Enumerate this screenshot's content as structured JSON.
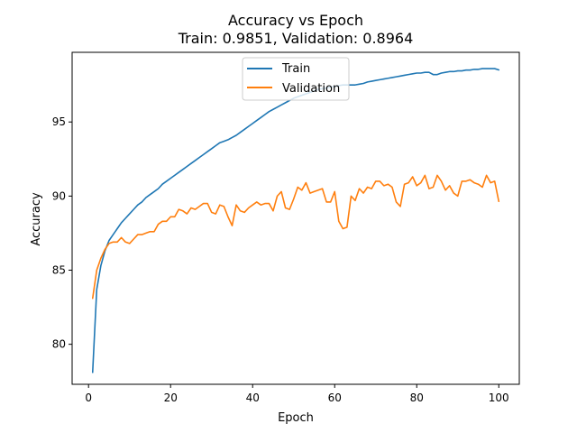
{
  "chart_data": {
    "type": "line",
    "title": "Accuracy vs Epoch",
    "subtitle": "Train: 0.9851, Validation: 0.8964",
    "xlabel": "Epoch",
    "ylabel": "Accuracy",
    "xlim": [
      -4,
      105
    ],
    "ylim": [
      77.3,
      99.7
    ],
    "xticks": [
      0,
      20,
      40,
      60,
      80,
      100
    ],
    "yticks": [
      80,
      85,
      90,
      95
    ],
    "xtick_labels": [
      "0",
      "20",
      "40",
      "60",
      "80",
      "100"
    ],
    "ytick_labels": [
      "80",
      "85",
      "90",
      "95"
    ],
    "grid": false,
    "legend_position": "top-center",
    "x": [
      1,
      2,
      3,
      4,
      5,
      6,
      7,
      8,
      9,
      10,
      11,
      12,
      13,
      14,
      15,
      16,
      17,
      18,
      19,
      20,
      21,
      22,
      23,
      24,
      25,
      26,
      27,
      28,
      29,
      30,
      31,
      32,
      33,
      34,
      35,
      36,
      37,
      38,
      39,
      40,
      41,
      42,
      43,
      44,
      45,
      46,
      47,
      48,
      49,
      50,
      51,
      52,
      53,
      54,
      55,
      56,
      57,
      58,
      59,
      60,
      61,
      62,
      63,
      64,
      65,
      66,
      67,
      68,
      69,
      70,
      71,
      72,
      73,
      74,
      75,
      76,
      77,
      78,
      79,
      80,
      81,
      82,
      83,
      84,
      85,
      86,
      87,
      88,
      89,
      90,
      91,
      92,
      93,
      94,
      95,
      96,
      97,
      98,
      99,
      100
    ],
    "series": [
      {
        "name": "Train",
        "color": "#1f77b4",
        "values": [
          78.1,
          83.7,
          85.3,
          86.3,
          87.0,
          87.4,
          87.8,
          88.2,
          88.5,
          88.8,
          89.1,
          89.4,
          89.6,
          89.9,
          90.1,
          90.3,
          90.5,
          90.8,
          91.0,
          91.2,
          91.4,
          91.6,
          91.8,
          92.0,
          92.2,
          92.4,
          92.6,
          92.8,
          93.0,
          93.2,
          93.4,
          93.6,
          93.7,
          93.8,
          93.95,
          94.1,
          94.3,
          94.5,
          94.7,
          94.9,
          95.1,
          95.3,
          95.5,
          95.7,
          95.85,
          96.0,
          96.15,
          96.3,
          96.45,
          96.6,
          96.7,
          96.8,
          96.9,
          97.0,
          97.1,
          97.2,
          97.25,
          97.3,
          97.35,
          97.4,
          97.45,
          97.5,
          97.5,
          97.5,
          97.5,
          97.55,
          97.6,
          97.7,
          97.75,
          97.8,
          97.85,
          97.9,
          97.95,
          98.0,
          98.05,
          98.1,
          98.15,
          98.2,
          98.25,
          98.3,
          98.3,
          98.35,
          98.35,
          98.2,
          98.2,
          98.3,
          98.35,
          98.4,
          98.4,
          98.45,
          98.45,
          98.5,
          98.5,
          98.55,
          98.55,
          98.6,
          98.6,
          98.6,
          98.6,
          98.51
        ]
      },
      {
        "name": "Validation",
        "color": "#ff7f0e",
        "values": [
          83.1,
          85.0,
          85.8,
          86.4,
          86.8,
          86.9,
          86.9,
          87.2,
          86.9,
          86.8,
          87.1,
          87.4,
          87.4,
          87.5,
          87.6,
          87.6,
          88.1,
          88.3,
          88.3,
          88.6,
          88.6,
          89.1,
          89.0,
          88.8,
          89.2,
          89.1,
          89.3,
          89.5,
          89.5,
          88.9,
          88.8,
          89.4,
          89.3,
          88.6,
          88.0,
          89.4,
          89.0,
          88.9,
          89.2,
          89.4,
          89.6,
          89.4,
          89.5,
          89.5,
          89.0,
          90.0,
          90.3,
          89.2,
          89.1,
          89.8,
          90.6,
          90.4,
          90.9,
          90.2,
          90.3,
          90.4,
          90.5,
          89.6,
          89.6,
          90.3,
          88.3,
          87.8,
          87.9,
          90.0,
          89.7,
          90.5,
          90.2,
          90.6,
          90.5,
          91.0,
          91.0,
          90.7,
          90.8,
          90.6,
          89.6,
          89.3,
          90.8,
          90.9,
          91.3,
          90.7,
          90.9,
          91.4,
          90.5,
          90.6,
          91.4,
          91.0,
          90.4,
          90.7,
          90.2,
          90.0,
          91.0,
          91.0,
          91.1,
          90.9,
          90.8,
          90.6,
          91.4,
          90.9,
          91.0,
          89.64
        ]
      }
    ]
  }
}
